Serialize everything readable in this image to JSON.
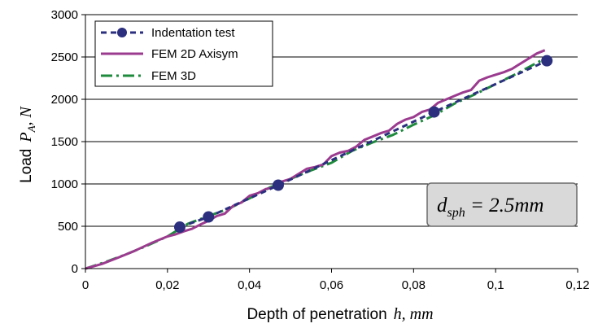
{
  "chart_data": {
    "type": "line",
    "title": "",
    "xlabel": {
      "prefix": "Depth of penetration",
      "symbol": "h, mm"
    },
    "ylabel": {
      "prefix": "Load",
      "symbol": "P",
      "subscript": "A",
      "suffix": ", N"
    },
    "xlim": [
      0,
      0.12
    ],
    "ylim": [
      0,
      3000
    ],
    "x_ticks": [
      "0",
      "0,02",
      "0,04",
      "0,06",
      "0,08",
      "0,1",
      "0,12"
    ],
    "x_tick_values": [
      0,
      0.02,
      0.04,
      0.06,
      0.08,
      0.1,
      0.12
    ],
    "y_ticks": [
      "0",
      "500",
      "1000",
      "1500",
      "2000",
      "2500",
      "3000"
    ],
    "y_tick_values": [
      0,
      500,
      1000,
      1500,
      2000,
      2500,
      3000
    ],
    "grid": "horizontal",
    "legend_position": "top-left",
    "series": [
      {
        "name": "Indentation test",
        "color": "#2b2f7e",
        "style": "dashed-markers",
        "x": [
          0.023,
          0.03,
          0.047,
          0.085,
          0.1125
        ],
        "y": [
          490,
          610,
          985,
          1850,
          2455
        ]
      },
      {
        "name": "FEM 2D Axisym",
        "color": "#9b3b8f",
        "style": "solid",
        "x": [
          0,
          0.004,
          0.008,
          0.012,
          0.016,
          0.02,
          0.022,
          0.024,
          0.026,
          0.028,
          0.03,
          0.032,
          0.034,
          0.036,
          0.038,
          0.04,
          0.042,
          0.044,
          0.046,
          0.048,
          0.05,
          0.052,
          0.054,
          0.056,
          0.058,
          0.06,
          0.062,
          0.064,
          0.066,
          0.068,
          0.07,
          0.072,
          0.074,
          0.076,
          0.078,
          0.08,
          0.082,
          0.084,
          0.086,
          0.088,
          0.09,
          0.092,
          0.094,
          0.096,
          0.098,
          0.1,
          0.102,
          0.104,
          0.106,
          0.108,
          0.11,
          0.112
        ],
        "y": [
          0,
          55,
          130,
          210,
          300,
          380,
          405,
          440,
          470,
          520,
          565,
          620,
          650,
          740,
          780,
          860,
          890,
          940,
          960,
          1030,
          1060,
          1120,
          1180,
          1200,
          1230,
          1330,
          1370,
          1390,
          1440,
          1520,
          1560,
          1600,
          1630,
          1710,
          1760,
          1790,
          1850,
          1880,
          1960,
          2000,
          2040,
          2080,
          2110,
          2220,
          2260,
          2290,
          2320,
          2360,
          2420,
          2480,
          2540,
          2580
        ]
      },
      {
        "name": "FEM 3D",
        "color": "#1e8a3c",
        "style": "dash-dot",
        "x": [
          0,
          0.005,
          0.01,
          0.015,
          0.02,
          0.025,
          0.03,
          0.035,
          0.04,
          0.045,
          0.05,
          0.055,
          0.06,
          0.065,
          0.07,
          0.075,
          0.08,
          0.085,
          0.09,
          0.095,
          0.1,
          0.105,
          0.11,
          0.112
        ],
        "y": [
          0,
          80,
          170,
          270,
          380,
          530,
          620,
          710,
          830,
          960,
          1060,
          1160,
          1250,
          1390,
          1490,
          1580,
          1700,
          1810,
          1950,
          2060,
          2180,
          2300,
          2430,
          2480
        ]
      }
    ],
    "annotation": {
      "symbol": "d",
      "subscript": "sph",
      "value": " = 2.5mm"
    }
  }
}
